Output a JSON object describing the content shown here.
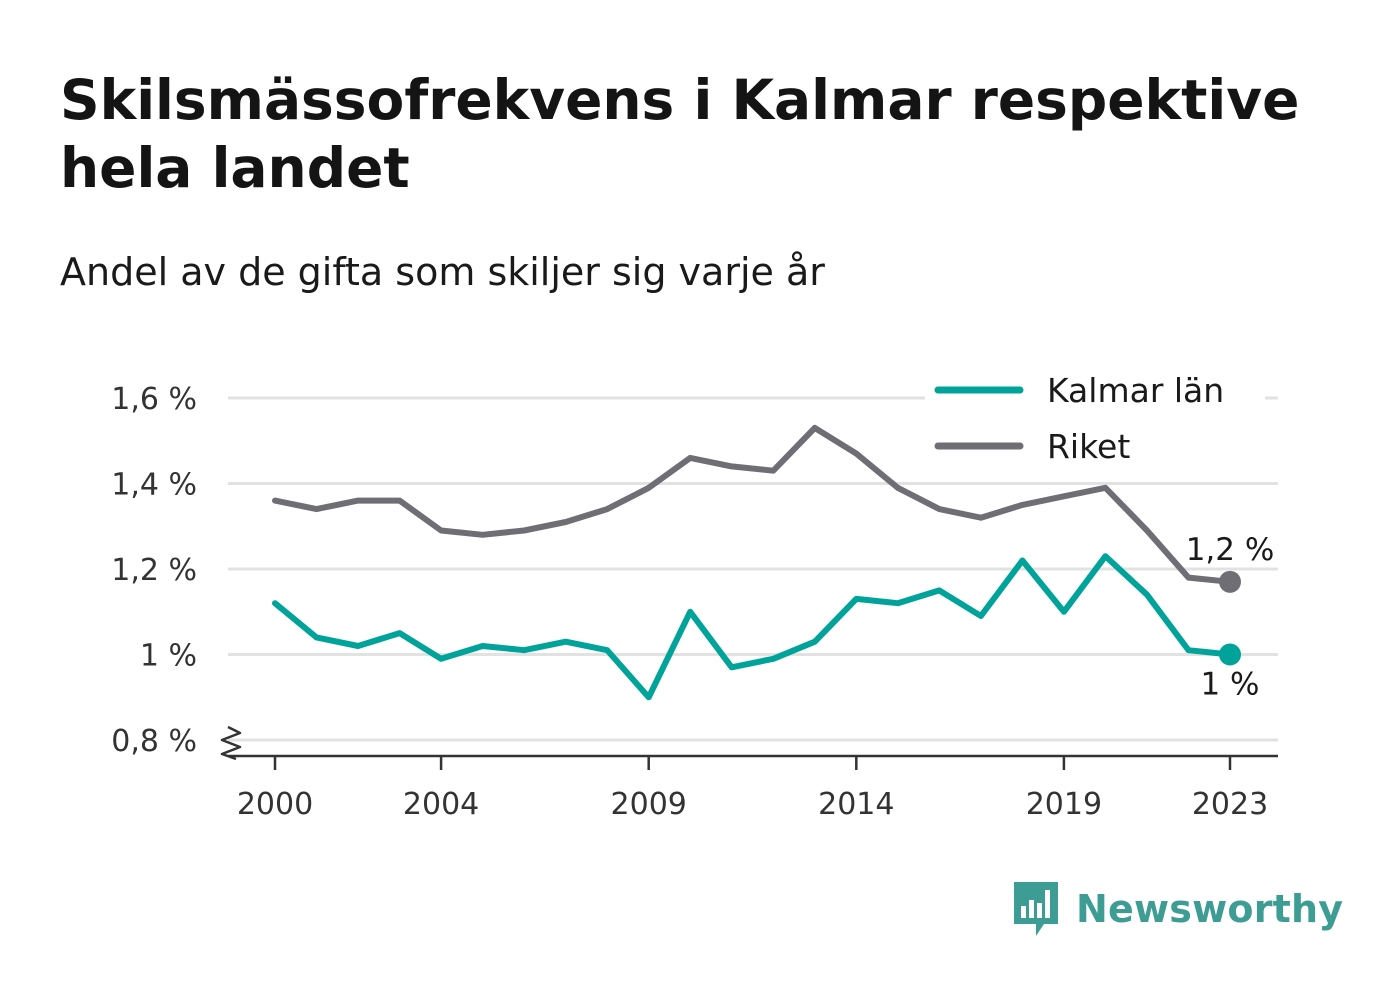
{
  "title": "Skilsmässofrekvens i Kalmar respektive hela landet",
  "subtitle": "Andel av de gifta som skiljer sig varje år",
  "brand": {
    "name": "Newsworthy",
    "icon": "bar-chart-speech-icon",
    "color": "#3d9d94"
  },
  "colors": {
    "kalmar": "#00a39a",
    "riket": "#6e6e74",
    "grid": "#e2e2e2",
    "axis": "#333333"
  },
  "chart_data": {
    "type": "line",
    "title": "Skilsmässofrekvens i Kalmar respektive hela landet",
    "subtitle": "Andel av de gifta som skiljer sig varje år",
    "x": [
      2000,
      2001,
      2002,
      2003,
      2004,
      2005,
      2006,
      2007,
      2008,
      2009,
      2010,
      2011,
      2012,
      2013,
      2014,
      2015,
      2016,
      2017,
      2018,
      2019,
      2020,
      2021,
      2022,
      2023
    ],
    "x_ticks": [
      2000,
      2004,
      2009,
      2014,
      2019,
      2023
    ],
    "x_tick_labels": [
      "2000",
      "2004",
      "2009",
      "2014",
      "2019",
      "2023"
    ],
    "ylim": [
      0.8,
      1.6
    ],
    "y_ticks": [
      0.8,
      1.0,
      1.2,
      1.4,
      1.6
    ],
    "y_tick_labels": [
      "0,8 %",
      "1 %",
      "1,2 %",
      "1,4 %",
      "1,6 %"
    ],
    "y_axis_break": true,
    "grid": true,
    "legend_position": "top-right",
    "series": [
      {
        "name": "Kalmar län",
        "color": "#00a39a",
        "end_label": "1 %",
        "values": [
          1.12,
          1.04,
          1.02,
          1.05,
          0.99,
          1.02,
          1.01,
          1.03,
          1.01,
          0.9,
          1.1,
          0.97,
          0.99,
          1.03,
          1.13,
          1.12,
          1.15,
          1.09,
          1.22,
          1.1,
          1.23,
          1.14,
          1.01,
          1.0
        ]
      },
      {
        "name": "Riket",
        "color": "#6e6e74",
        "end_label": "1,2 %",
        "values": [
          1.36,
          1.34,
          1.36,
          1.36,
          1.29,
          1.28,
          1.29,
          1.31,
          1.34,
          1.39,
          1.46,
          1.44,
          1.43,
          1.53,
          1.47,
          1.39,
          1.34,
          1.32,
          1.35,
          1.37,
          1.39,
          1.29,
          1.18,
          1.17
        ]
      }
    ]
  }
}
